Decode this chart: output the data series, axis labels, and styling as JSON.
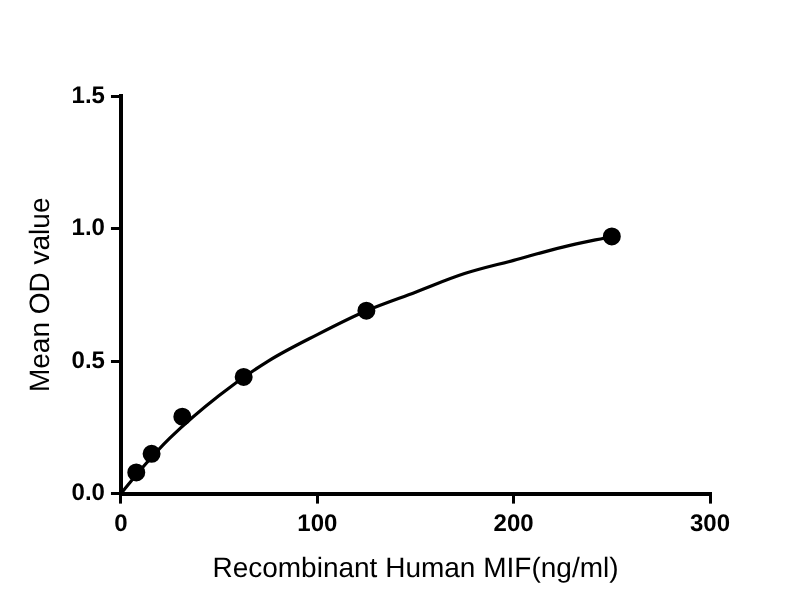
{
  "chart_data": {
    "type": "scatter",
    "xlabel": "Recombinant Human MIF(ng/ml)",
    "ylabel": "Mean OD value",
    "series": [
      {
        "type": "scatter",
        "marker": "circle",
        "color": "#000000",
        "x": [
          7.8,
          15.6,
          31.25,
          62.5,
          125,
          250
        ],
        "values": [
          0.08,
          0.15,
          0.29,
          0.44,
          0.69,
          0.97
        ]
      },
      {
        "type": "line",
        "marker": "none",
        "color": "#000000",
        "x": [
          0,
          10,
          25,
          50,
          75,
          100,
          125,
          150,
          175,
          200,
          225,
          250
        ],
        "values": [
          0,
          0.09,
          0.21,
          0.37,
          0.5,
          0.6,
          0.69,
          0.76,
          0.83,
          0.88,
          0.93,
          0.97
        ]
      }
    ],
    "xlim": [
      0,
      300
    ],
    "xticks": [
      0,
      100,
      200,
      300
    ],
    "ylim": [
      0,
      1.5
    ],
    "yticks": [
      {
        "value": 0,
        "label": "0.0"
      },
      0.5,
      {
        "value": 1,
        "label": "1.0"
      },
      1.5
    ],
    "grid": false,
    "legend": false
  }
}
